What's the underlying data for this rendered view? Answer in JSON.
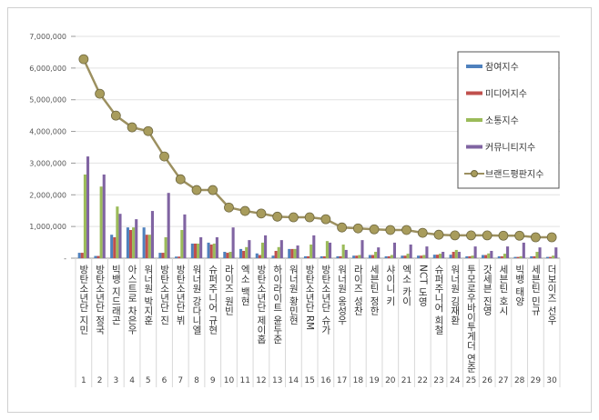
{
  "chart_data": {
    "type": "bar+line",
    "title": "",
    "xlabel": "",
    "ylabel": "",
    "ylim": [
      0,
      7000000
    ],
    "yticks": [
      "-",
      "1,000,000",
      "2,000,000",
      "3,000,000",
      "4,000,000",
      "5,000,000",
      "6,000,000",
      "7,000,000"
    ],
    "grid": true,
    "legend_position": "top-right",
    "ranks": [
      "1",
      "2",
      "3",
      "4",
      "5",
      "6",
      "7",
      "8",
      "9",
      "10",
      "11",
      "12",
      "13",
      "14",
      "15",
      "16",
      "17",
      "18",
      "19",
      "20",
      "21",
      "22",
      "23",
      "24",
      "25",
      "26",
      "27",
      "28",
      "29",
      "30"
    ],
    "categories": [
      "방탄소년단 지민",
      "방탄소년단 정국",
      "빅뱅 지드래곤",
      "아스트로 차은우",
      "워너원 박지훈",
      "방탄소년단 진",
      "방탄소년단 뷔",
      "워너원 강다니엘",
      "슈퍼주니어 규현",
      "라이즈 원빈",
      "엑소 백현",
      "방탄소년단 제이홉",
      "하이라이트 윤두준",
      "워너원 황민현",
      "방탄소년단 RM",
      "방탄소년단 슈가",
      "워너원 옹성우",
      "라이즈 성찬",
      "세븐틴 정한",
      "샤이니 키",
      "엑소 카이",
      "NCT 도영",
      "슈퍼주니어 희철",
      "워너원 김재환",
      "투모로우바이투게더 연준",
      "갓세븐 진영",
      "세븐틴 호시",
      "빅뱅 태양",
      "세븐틴 민규",
      "더보이즈 선우"
    ],
    "series": [
      {
        "name": "참여지수",
        "type": "bar",
        "color": "#4f81bd",
        "values": [
          170000,
          70000,
          740000,
          970000,
          970000,
          170000,
          50000,
          460000,
          490000,
          200000,
          290000,
          150000,
          80000,
          290000,
          60000,
          60000,
          60000,
          80000,
          100000,
          60000,
          80000,
          80000,
          110000,
          110000,
          60000,
          100000,
          60000,
          40000,
          60000,
          40000
        ]
      },
      {
        "name": "미디어지수",
        "type": "bar",
        "color": "#c0504d",
        "values": [
          170000,
          70000,
          660000,
          890000,
          740000,
          170000,
          50000,
          460000,
          430000,
          170000,
          230000,
          100000,
          230000,
          290000,
          60000,
          60000,
          60000,
          80000,
          100000,
          60000,
          80000,
          80000,
          110000,
          200000,
          60000,
          100000,
          60000,
          40000,
          60000,
          40000
        ]
      },
      {
        "name": "소통지수",
        "type": "bar",
        "color": "#9bbb59",
        "values": [
          2640000,
          2260000,
          1630000,
          970000,
          740000,
          660000,
          890000,
          460000,
          460000,
          200000,
          350000,
          490000,
          350000,
          290000,
          430000,
          540000,
          430000,
          100000,
          200000,
          100000,
          140000,
          100000,
          140000,
          260000,
          80000,
          150000,
          140000,
          60000,
          200000,
          80000
        ]
      },
      {
        "name": "커뮤니티지수",
        "type": "bar",
        "color": "#8064a2",
        "values": [
          3210000,
          2640000,
          1400000,
          1230000,
          1490000,
          2060000,
          1380000,
          660000,
          660000,
          970000,
          570000,
          720000,
          570000,
          400000,
          720000,
          490000,
          260000,
          570000,
          340000,
          490000,
          430000,
          370000,
          200000,
          200000,
          370000,
          230000,
          370000,
          490000,
          340000,
          340000
        ]
      },
      {
        "name": "브랜드평판지수",
        "type": "line",
        "color": "#9c9060",
        "values": [
          6280000,
          5190000,
          4500000,
          4130000,
          4010000,
          3210000,
          2490000,
          2150000,
          2150000,
          1600000,
          1490000,
          1410000,
          1310000,
          1290000,
          1290000,
          1230000,
          970000,
          940000,
          910000,
          890000,
          890000,
          800000,
          740000,
          720000,
          720000,
          720000,
          710000,
          710000,
          660000,
          660000
        ]
      }
    ]
  }
}
